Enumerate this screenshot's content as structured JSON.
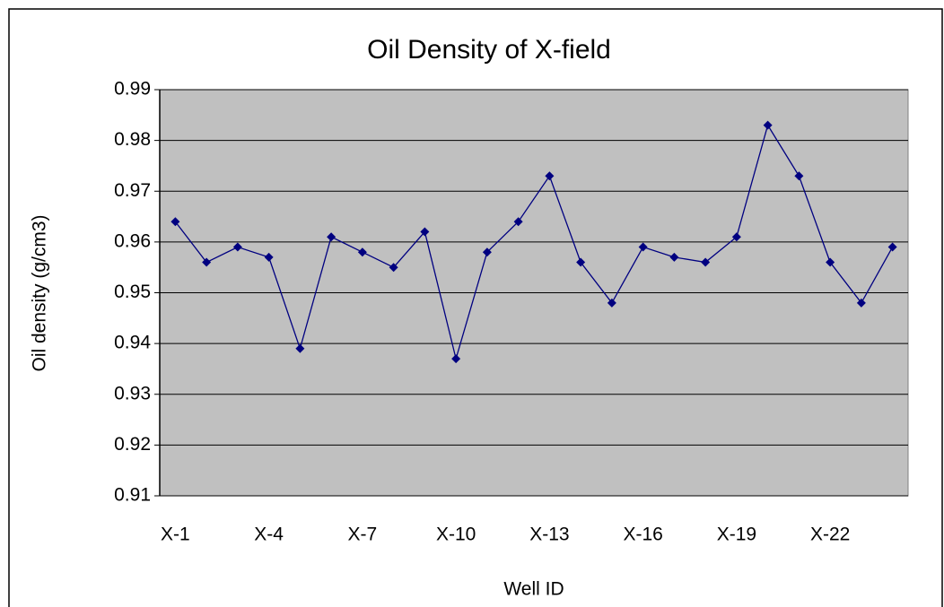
{
  "chart_data": {
    "type": "line",
    "title": "Oil Density of X-field",
    "x_label": "Well ID",
    "y_label": "Oil density (g/cm3)",
    "categories": [
      "X-1",
      null,
      null,
      "X-4",
      null,
      null,
      "X-7",
      null,
      null,
      "X-10",
      null,
      null,
      "X-13",
      null,
      null,
      "X-16",
      null,
      null,
      "X-19",
      null,
      null,
      "X-22",
      null,
      null
    ],
    "series": [
      {
        "name": "Oil density",
        "color": "#000080",
        "values": [
          0.964,
          0.956,
          0.959,
          0.957,
          0.939,
          0.961,
          0.958,
          0.955,
          0.962,
          0.937,
          0.958,
          0.964,
          0.973,
          0.956,
          0.948,
          0.959,
          0.957,
          0.956,
          0.961,
          0.983,
          0.973,
          0.956,
          0.948,
          0.959
        ]
      }
    ],
    "ylim": [
      0.91,
      0.99
    ],
    "yticks": [
      0.91,
      0.92,
      0.93,
      0.94,
      0.95,
      0.96,
      0.97,
      0.98,
      0.99
    ],
    "grid": true,
    "plot_background": "#c0c0c0"
  }
}
